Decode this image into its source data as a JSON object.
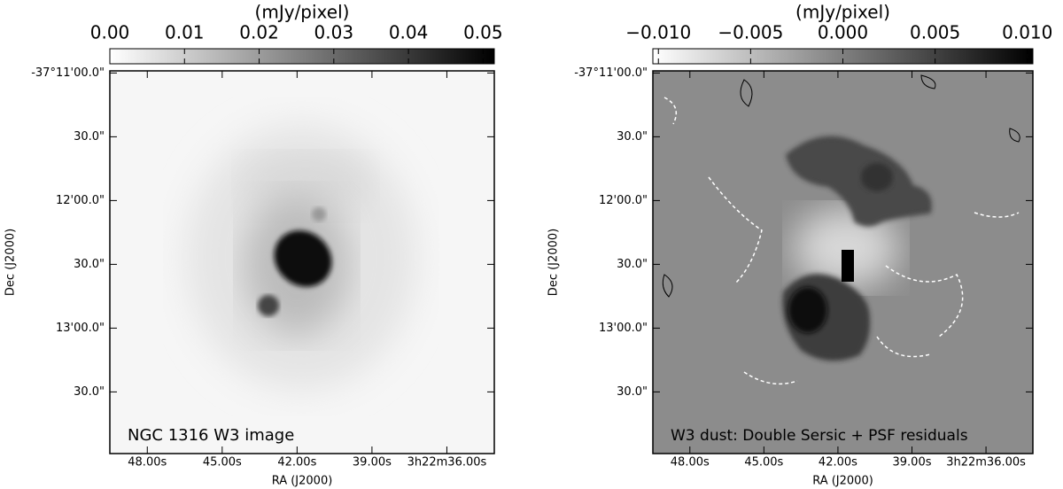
{
  "chart_data": [
    {
      "type": "image",
      "annotation": "NGC 1316 W3 image",
      "colorbar_label": "(mJy/pixel)",
      "clim": [
        0,
        0.0515
      ],
      "cticks": [
        {
          "value": 0,
          "label": "0.00"
        },
        {
          "value": 0.01,
          "label": "0.01"
        },
        {
          "value": 0.02,
          "label": "0.02"
        },
        {
          "value": 0.03,
          "label": "0.03"
        },
        {
          "value": 0.04,
          "label": "0.04"
        },
        {
          "value": 0.05,
          "label": "0.05"
        }
      ],
      "xlabel": "RA (J2000)",
      "ylabel": "Dec (J2000)",
      "xlim": [
        49.5,
        34.1
      ],
      "xticks": [
        {
          "value": 48,
          "label": "48.00s"
        },
        {
          "value": 45,
          "label": "45.00s"
        },
        {
          "value": 42,
          "label": "42.00s"
        },
        {
          "value": 39,
          "label": "39.00s"
        },
        {
          "value": 36,
          "label": "3h22m36.00s"
        }
      ],
      "ylim": [
        839,
        659
      ],
      "yticks": [
        {
          "value": 660,
          "label": "-37°11'00.0\""
        },
        {
          "value": 690,
          "label": "30.0\""
        },
        {
          "value": 720,
          "label": "12'00.0\""
        },
        {
          "value": 750,
          "label": "30.0\""
        },
        {
          "value": 780,
          "label": "13'00.0\""
        },
        {
          "value": 810,
          "label": "30.0\""
        }
      ]
    },
    {
      "type": "image",
      "annotation": "W3 dust: Double Sersic + PSF residuals",
      "colorbar_label": "(mJy/pixel)",
      "clim": [
        -0.0103,
        0.0103
      ],
      "cticks": [
        {
          "value": -0.01,
          "label": "−0.010"
        },
        {
          "value": -0.005,
          "label": "−0.005"
        },
        {
          "value": 0,
          "label": "0.000"
        },
        {
          "value": 0.005,
          "label": "0.005"
        },
        {
          "value": 0.01,
          "label": "0.010"
        }
      ],
      "xlabel": "RA (J2000)",
      "ylabel": "Dec (J2000)",
      "xlim": [
        49.5,
        34.1
      ],
      "xticks": [
        {
          "value": 48,
          "label": "48.00s"
        },
        {
          "value": 45,
          "label": "45.00s"
        },
        {
          "value": 42,
          "label": "42.00s"
        },
        {
          "value": 39,
          "label": "39.00s"
        },
        {
          "value": 36,
          "label": "3h22m36.00s"
        }
      ],
      "ylim": [
        839,
        659
      ],
      "yticks": [
        {
          "value": 660,
          "label": "-37°11'00.0\""
        },
        {
          "value": 690,
          "label": "30.0\""
        },
        {
          "value": 720,
          "label": "12'00.0\""
        },
        {
          "value": 750,
          "label": "30.0\""
        },
        {
          "value": 780,
          "label": "13'00.0\""
        },
        {
          "value": 810,
          "label": "30.0\""
        }
      ]
    }
  ]
}
